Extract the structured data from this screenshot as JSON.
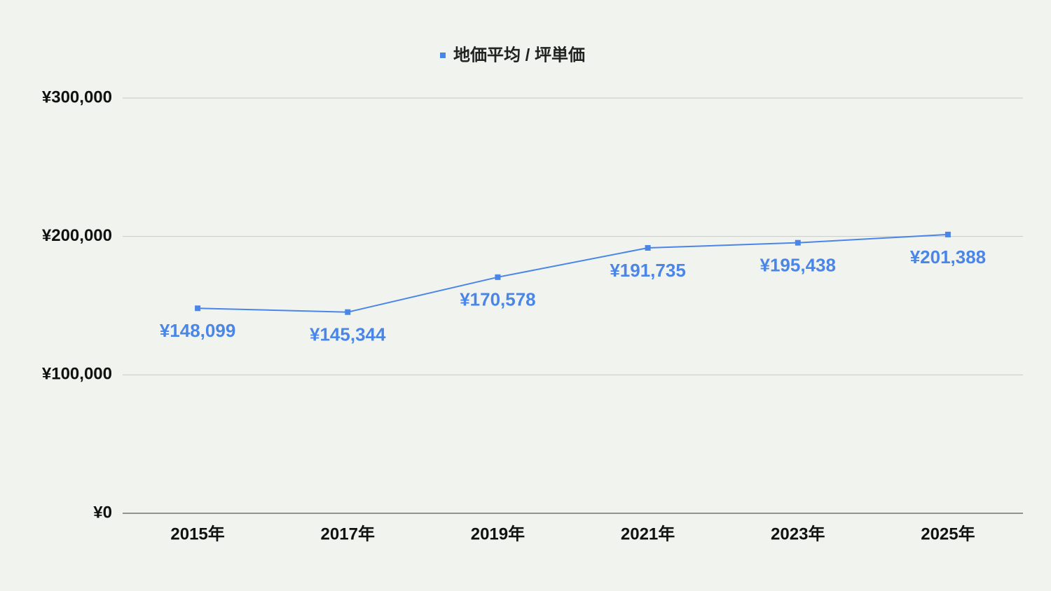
{
  "chart_data": {
    "type": "line",
    "categories": [
      "2015年",
      "2017年",
      "2019年",
      "2021年",
      "2023年",
      "2025年"
    ],
    "series": [
      {
        "name": "地価平均 / 坪単価",
        "color": "#4a86e8",
        "values": [
          148099,
          145344,
          170578,
          191735,
          195438,
          201388
        ],
        "value_labels": [
          "¥148,099",
          "¥145,344",
          "¥170,578",
          "¥191,735",
          "¥195,438",
          "¥201,388"
        ]
      }
    ],
    "ylim": [
      0,
      300000
    ],
    "yticks": [
      {
        "value": 0,
        "label": "¥0"
      },
      {
        "value": 100000,
        "label": "¥100,000"
      },
      {
        "value": 200000,
        "label": "¥200,000"
      },
      {
        "value": 300000,
        "label": "¥300,000"
      }
    ],
    "grid": true,
    "legend": "top"
  }
}
